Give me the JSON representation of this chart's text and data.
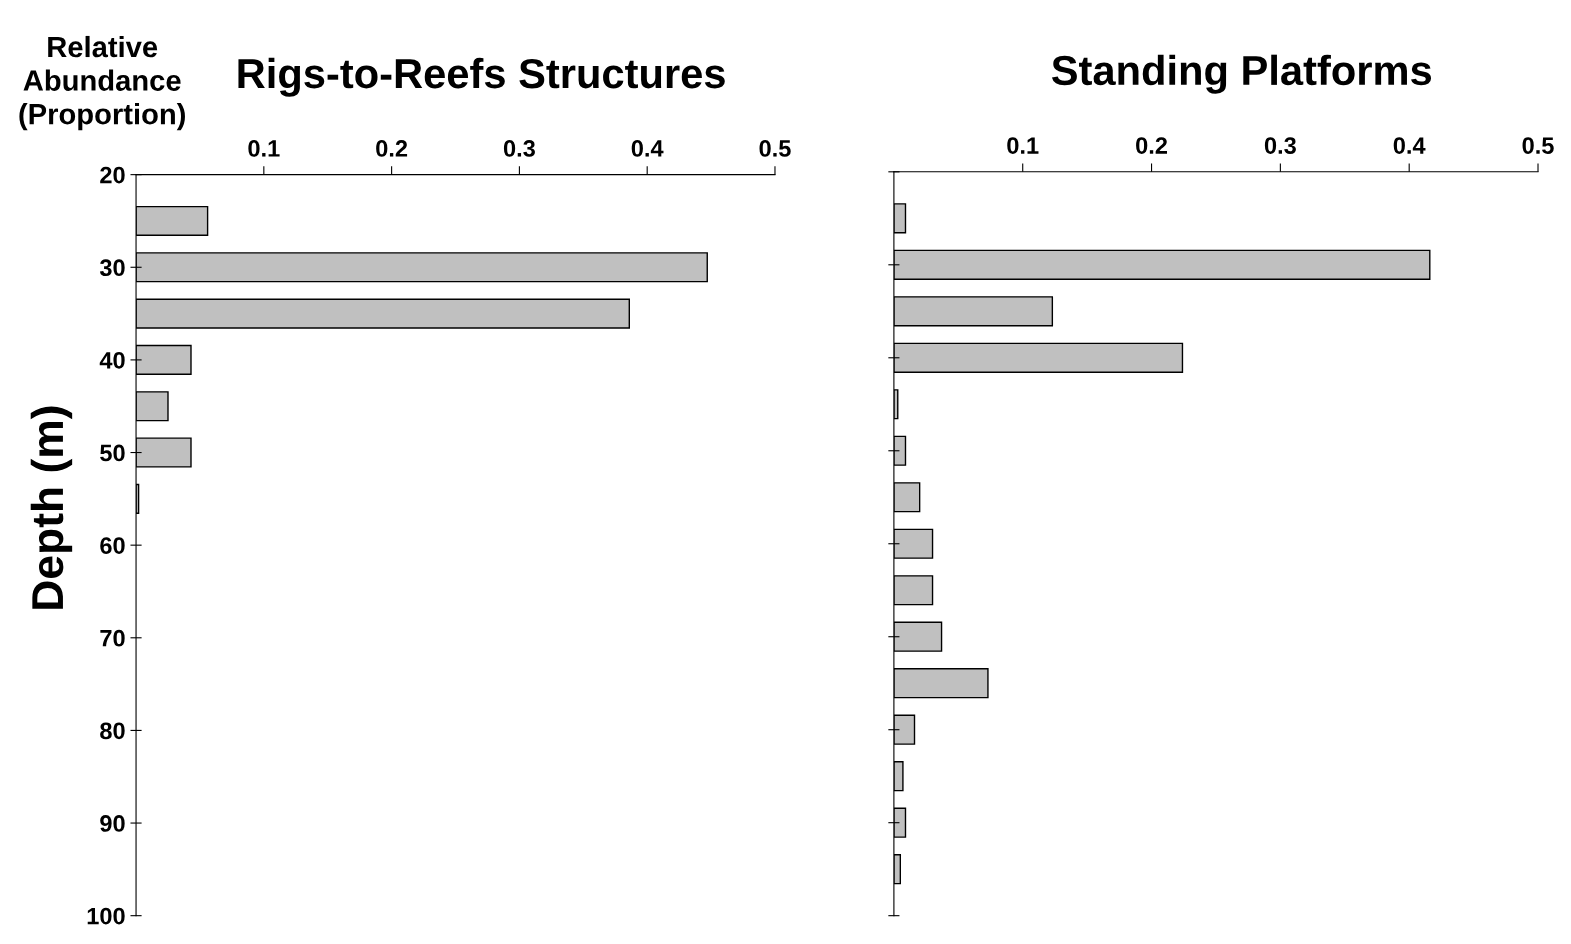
{
  "chart_data": [
    {
      "type": "bar",
      "orientation": "horizontal",
      "title": "Rigs-to-Reefs Structures",
      "xlabel": "Relative\nAbundance\n(Proportion)",
      "ylabel": "Depth (m)",
      "x": [
        25,
        30,
        35,
        40,
        45,
        50,
        55
      ],
      "values": [
        0.056,
        0.447,
        0.386,
        0.043,
        0.025,
        0.043,
        0.002
      ],
      "color": "#c0c0c0",
      "xlim": [
        0,
        0.5
      ],
      "xticks": [
        0.1,
        0.2,
        0.3,
        0.4,
        0.5
      ],
      "ylim": [
        100,
        20
      ],
      "yticks": [
        20,
        30,
        40,
        50,
        60,
        70,
        80,
        90,
        100
      ],
      "grid": false
    },
    {
      "type": "bar",
      "orientation": "horizontal",
      "title": "Standing Platforms",
      "x": [
        25,
        30,
        35,
        40,
        45,
        50,
        55,
        60,
        65,
        70,
        75,
        80,
        85,
        90,
        95
      ],
      "values": [
        0.009,
        0.416,
        0.123,
        0.224,
        0.003,
        0.009,
        0.02,
        0.03,
        0.03,
        0.037,
        0.073,
        0.016,
        0.007,
        0.009,
        0.005
      ],
      "color": "#c0c0c0",
      "xlim": [
        0,
        0.5
      ],
      "xticks": [
        0.1,
        0.2,
        0.3,
        0.4,
        0.5
      ],
      "ylim": [
        100,
        20
      ],
      "yticks": [
        20,
        30,
        40,
        50,
        60,
        70,
        80,
        90,
        100
      ],
      "tick_labels": "x",
      "grid": false
    }
  ]
}
